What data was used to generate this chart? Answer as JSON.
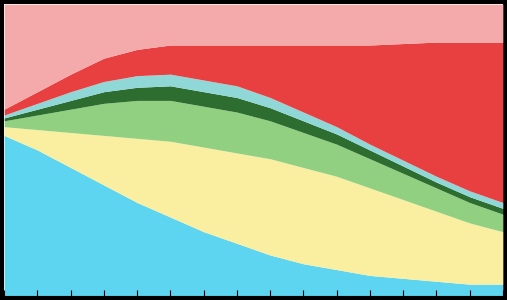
{
  "n_points": 16,
  "colors": [
    "#5DD4F0",
    "#FAEEA0",
    "#90D080",
    "#2D6E30",
    "#90D8D8",
    "#E84040",
    "#F4AAAA"
  ],
  "series": [
    [
      55,
      50,
      44,
      38,
      32,
      27,
      22,
      18,
      14,
      11,
      9,
      7,
      6,
      5,
      4,
      4
    ],
    [
      3,
      7,
      12,
      17,
      22,
      26,
      29,
      31,
      33,
      33,
      32,
      30,
      27,
      24,
      21,
      18
    ],
    [
      2,
      5,
      8,
      11,
      13,
      14,
      14,
      14,
      13,
      12,
      11,
      10,
      9,
      8,
      7,
      6
    ],
    [
      1,
      2,
      3,
      4,
      4.5,
      5,
      5,
      5,
      4.5,
      4,
      3.5,
      3,
      2.5,
      2,
      2,
      2
    ],
    [
      1,
      2,
      3,
      3.5,
      4,
      4,
      4,
      4,
      3.5,
      3,
      2.5,
      2,
      2,
      2,
      2,
      2
    ],
    [
      2,
      4,
      6,
      8,
      9,
      10,
      12,
      14,
      18,
      23,
      28,
      34,
      40,
      46,
      51,
      55
    ],
    [
      36,
      30,
      24,
      18.5,
      15.5,
      14,
      14,
      14,
      14,
      14,
      14,
      14,
      13.5,
      13,
      13,
      13
    ]
  ],
  "background": "#000000",
  "plot_bg": "#FFFFFF",
  "tick_color": "#000000"
}
